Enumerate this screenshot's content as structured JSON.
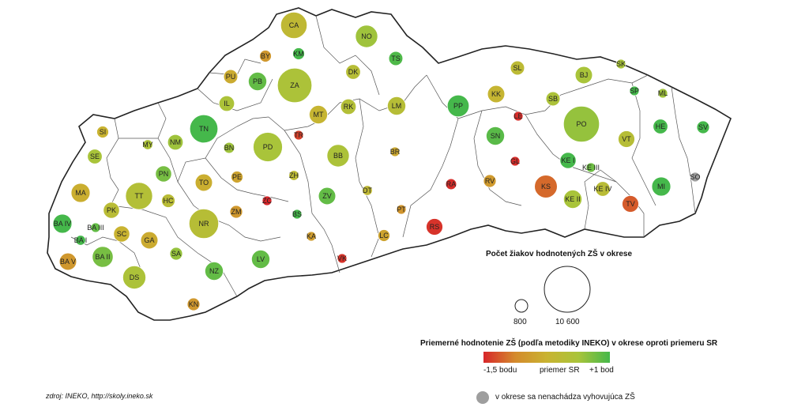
{
  "districts": [
    {
      "code": "CA",
      "value": 0.15,
      "count": 3500
    },
    {
      "code": "NO",
      "value": 0.55,
      "count": 2500
    },
    {
      "code": "BY",
      "value": -0.5,
      "count": 700
    },
    {
      "code": "KM",
      "value": 1.0,
      "count": 700
    },
    {
      "code": "TS",
      "value": 0.95,
      "count": 1000
    },
    {
      "code": "PU",
      "value": -0.15,
      "count": 1000
    },
    {
      "code": "PB",
      "value": 0.85,
      "count": 1700
    },
    {
      "code": "ZA",
      "value": 0.45,
      "count": 6000
    },
    {
      "code": "DK",
      "value": 0.3,
      "count": 1100
    },
    {
      "code": "IL",
      "value": 0.45,
      "count": 1200
    },
    {
      "code": "RK",
      "value": 0.35,
      "count": 1200
    },
    {
      "code": "LM",
      "value": 0.3,
      "count": 1700
    },
    {
      "code": "MT",
      "value": 0.05,
      "count": 1700
    },
    {
      "code": "SI",
      "value": 0.0,
      "count": 700
    },
    {
      "code": "TN",
      "value": 1.05,
      "count": 4000
    },
    {
      "code": "TR",
      "value": -1.3,
      "count": 250
    },
    {
      "code": "MY",
      "value": 0.45,
      "count": 500
    },
    {
      "code": "NM",
      "value": 0.55,
      "count": 1200
    },
    {
      "code": "BN",
      "value": 0.55,
      "count": 600
    },
    {
      "code": "PD",
      "value": 0.5,
      "count": 4300
    },
    {
      "code": "SE",
      "value": 0.5,
      "count": 1100
    },
    {
      "code": "BB",
      "value": 0.45,
      "count": 2500
    },
    {
      "code": "BR",
      "value": -0.2,
      "count": 400
    },
    {
      "code": "PN",
      "value": 0.75,
      "count": 1300
    },
    {
      "code": "TO",
      "value": -0.1,
      "count": 1500
    },
    {
      "code": "PE",
      "value": -0.3,
      "count": 700
    },
    {
      "code": "ZH",
      "value": 0.2,
      "count": 500
    },
    {
      "code": "MA",
      "value": -0.1,
      "count": 1800
    },
    {
      "code": "TT",
      "value": 0.35,
      "count": 3700
    },
    {
      "code": "HC",
      "value": 0.25,
      "count": 900
    },
    {
      "code": "ZC",
      "value": -1.5,
      "count": 200
    },
    {
      "code": "ZV",
      "value": 0.85,
      "count": 1500
    },
    {
      "code": "DT",
      "value": 0.15,
      "count": 500
    },
    {
      "code": "PK",
      "value": 0.25,
      "count": 1300
    },
    {
      "code": "NR",
      "value": 0.3,
      "count": 4400
    },
    {
      "code": "ZM",
      "value": -0.5,
      "count": 800
    },
    {
      "code": "PT",
      "value": -0.55,
      "count": 300
    },
    {
      "code": "BA IV",
      "value": 1.0,
      "count": 1800
    },
    {
      "code": "BA III",
      "value": 0.85,
      "count": 400
    },
    {
      "code": "BA I",
      "value": 1.05,
      "count": 500
    },
    {
      "code": "SC",
      "value": 0.0,
      "count": 1300
    },
    {
      "code": "GA",
      "value": -0.15,
      "count": 1500
    },
    {
      "code": "BS",
      "value": 1.0,
      "count": 250
    },
    {
      "code": "KA",
      "value": -0.4,
      "count": 300
    },
    {
      "code": "LC",
      "value": -0.3,
      "count": 700
    },
    {
      "code": "RS",
      "value": -1.4,
      "count": 1400
    },
    {
      "code": "SA",
      "value": 0.6,
      "count": 800
    },
    {
      "code": "LV",
      "value": 0.85,
      "count": 1700
    },
    {
      "code": "BA V",
      "value": -0.5,
      "count": 1500
    },
    {
      "code": "BA II",
      "value": 0.75,
      "count": 2200
    },
    {
      "code": "NZ",
      "value": 0.85,
      "count": 1700
    },
    {
      "code": "VK",
      "value": -1.4,
      "count": 250
    },
    {
      "code": "DS",
      "value": 0.45,
      "count": 2700
    },
    {
      "code": "KN",
      "value": -0.5,
      "count": 800
    },
    {
      "code": "SK",
      "value": 0.5,
      "count": 250
    },
    {
      "code": "SL",
      "value": 0.2,
      "count": 1000
    },
    {
      "code": "BJ",
      "value": 0.5,
      "count": 1500
    },
    {
      "code": "SP",
      "value": 1.0,
      "count": 300
    },
    {
      "code": "ML",
      "value": 0.55,
      "count": 300
    },
    {
      "code": "PP",
      "value": 1.0,
      "count": 2400
    },
    {
      "code": "KK",
      "value": 0.05,
      "count": 1500
    },
    {
      "code": "SB",
      "value": 0.45,
      "count": 1000
    },
    {
      "code": "LE",
      "value": -1.45,
      "count": 350
    },
    {
      "code": "PO",
      "value": 0.6,
      "count": 6500
    },
    {
      "code": "HE",
      "value": 1.0,
      "count": 1100
    },
    {
      "code": "SV",
      "value": 1.0,
      "count": 800
    },
    {
      "code": "SN",
      "value": 0.9,
      "count": 1700
    },
    {
      "code": "VT",
      "value": 0.3,
      "count": 1400
    },
    {
      "code": "GL",
      "value": -1.45,
      "count": 350
    },
    {
      "code": "KE I",
      "value": 1.05,
      "count": 1300
    },
    {
      "code": "KE III",
      "value": 0.8,
      "count": 400
    },
    {
      "code": "RA",
      "value": -1.45,
      "count": 600
    },
    {
      "code": "RV",
      "value": -0.45,
      "count": 800
    },
    {
      "code": "KS",
      "value": -1.0,
      "count": 2600
    },
    {
      "code": "KE IV",
      "value": 0.25,
      "count": 1100
    },
    {
      "code": "MI",
      "value": 1.0,
      "count": 1800
    },
    {
      "code": "SO",
      "value": null,
      "count": 300
    },
    {
      "code": "KE II",
      "value": 0.5,
      "count": 1700
    },
    {
      "code": "TV",
      "value": -1.1,
      "count": 1400
    }
  ],
  "legend": {
    "size_title": "Počet žiakov hodnotených ZŠ v okrese",
    "size_small_label": "800",
    "size_large_label": "10 600",
    "color_title": "Priemerné hodnotenie ZŠ (podľa metodiky INEKO) v okrese oproti priemeru SR",
    "color_low": "-1,5 bodu",
    "color_mid": "priemer SR",
    "color_high": "+1 bod",
    "missing_label": "v okrese sa nenachádza vyhovujúca ZŠ"
  },
  "source": "zdroj: INEKO, http://skoly.ineko.sk",
  "colors": {
    "low": "#d7262a",
    "mid_low": "#d48a2c",
    "mid": "#c9b331",
    "mid_high": "#a9c43a",
    "high": "#45b84b",
    "missing": "#9e9e9e",
    "border": "#222222"
  }
}
